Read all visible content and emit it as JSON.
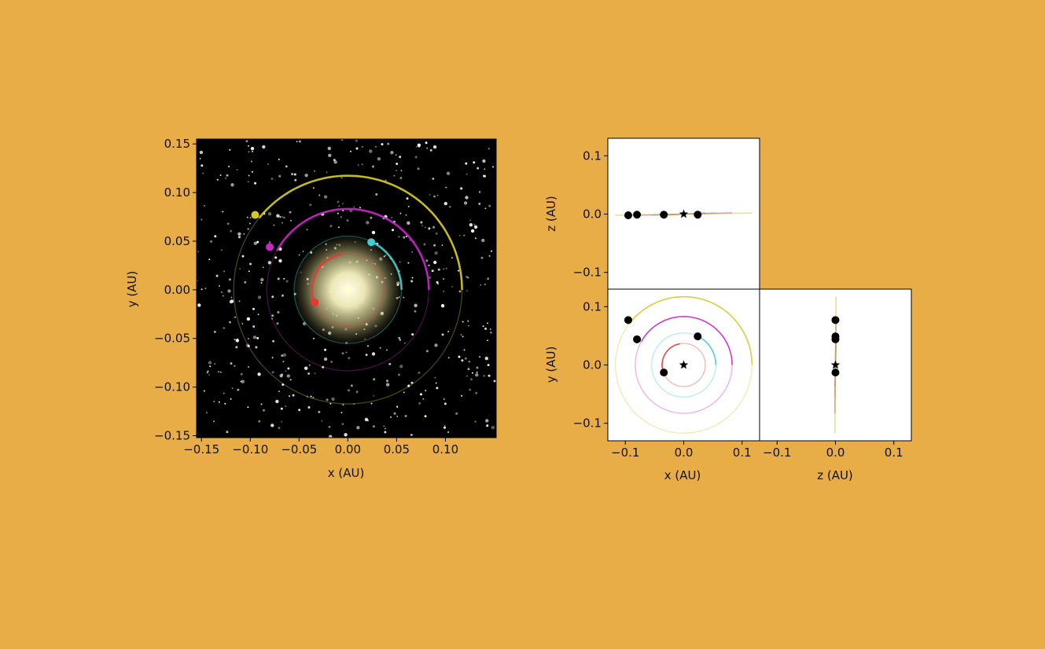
{
  "figure": {
    "background_color": "#E8AD47"
  },
  "chart_data": [
    {
      "id": "orbit_view",
      "type": "scatter",
      "xlabel": "x (AU)",
      "ylabel": "y (AU)",
      "xlim": [
        -0.155,
        0.152
      ],
      "ylim": [
        -0.152,
        0.155
      ],
      "xticks": [
        -0.15,
        -0.1,
        -0.05,
        0.0,
        0.05,
        0.1
      ],
      "xtick_labels": [
        "−0.15",
        "−0.10",
        "−0.05",
        "0.00",
        "0.05",
        "0.10"
      ],
      "yticks": [
        -0.15,
        -0.1,
        -0.05,
        0.0,
        0.05,
        0.1,
        0.15
      ],
      "ytick_labels": [
        "−0.15",
        "−0.10",
        "−0.05",
        "0.00",
        "0.05",
        "0.10",
        "0.15"
      ],
      "background": "starfield",
      "star": {
        "x": 0.0,
        "y": 0.0,
        "glow_color": "#FFFFD0"
      },
      "planets": [
        {
          "x": -0.034,
          "y": -0.013,
          "orbit_radius": 0.037,
          "color": "#E63A2E",
          "trail_start_deg": 100
        },
        {
          "x": 0.024,
          "y": 0.049,
          "orbit_radius": 0.055,
          "color": "#3ECDD0",
          "trail_start_deg": 0
        },
        {
          "x": -0.08,
          "y": 0.044,
          "orbit_radius": 0.083,
          "color": "#C926C9",
          "trail_start_deg": 0
        },
        {
          "x": -0.095,
          "y": 0.077,
          "orbit_radius": 0.117,
          "color": "#D5C928",
          "trail_start_deg": 0
        }
      ]
    },
    {
      "id": "xz_projection",
      "type": "scatter",
      "xlabel": "",
      "ylabel": "z (AU)",
      "xlim": [
        -0.13,
        0.13
      ],
      "ylim": [
        -0.13,
        0.13
      ],
      "yticks": [
        -0.1,
        0.0,
        0.1
      ],
      "ytick_labels": [
        "−0.1",
        "0.0",
        "0.1"
      ],
      "star": {
        "x": 0.0,
        "z": 0.0
      },
      "points": [
        {
          "x": -0.095,
          "z": -0.002
        },
        {
          "x": -0.08,
          "z": -0.001
        },
        {
          "x": -0.034,
          "z": -0.001
        },
        {
          "x": 0.024,
          "z": -0.001
        }
      ]
    },
    {
      "id": "xy_projection",
      "type": "scatter",
      "xlabel": "x (AU)",
      "ylabel": "y (AU)",
      "xlim": [
        -0.13,
        0.13
      ],
      "ylim": [
        -0.13,
        0.13
      ],
      "xticks": [
        -0.1,
        0.0,
        0.1
      ],
      "xtick_labels": [
        "−0.1",
        "0.0",
        "0.1"
      ],
      "yticks": [
        -0.1,
        0.0,
        0.1
      ],
      "ytick_labels": [
        "−0.1",
        "0.0",
        "0.1"
      ],
      "star": {
        "x": 0.0,
        "y": 0.0
      },
      "points": [
        {
          "x": -0.034,
          "y": -0.013
        },
        {
          "x": 0.024,
          "y": 0.049
        },
        {
          "x": -0.08,
          "y": 0.044
        },
        {
          "x": -0.095,
          "y": 0.077
        }
      ]
    },
    {
      "id": "zy_projection",
      "type": "scatter",
      "xlabel": "z (AU)",
      "ylabel": "",
      "xlim": [
        -0.13,
        0.13
      ],
      "ylim": [
        -0.13,
        0.13
      ],
      "xticks": [
        -0.1,
        0.0,
        0.1
      ],
      "xtick_labels": [
        "−0.1",
        "0.0",
        "0.1"
      ],
      "star": {
        "z": 0.0,
        "y": 0.0
      },
      "points": [
        {
          "z": 0.0,
          "y": -0.013
        },
        {
          "z": 0.0,
          "y": 0.049
        },
        {
          "z": 0.0,
          "y": 0.044
        },
        {
          "z": 0.0,
          "y": 0.077
        }
      ]
    }
  ]
}
